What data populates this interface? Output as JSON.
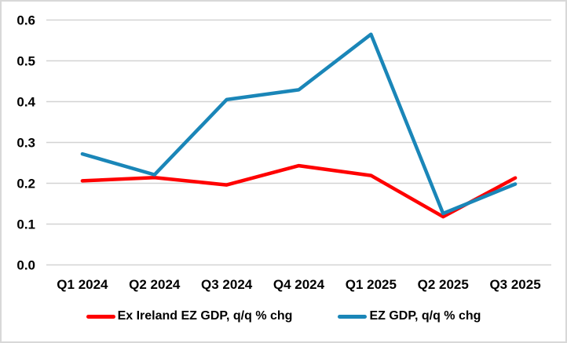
{
  "chart_data": {
    "type": "line",
    "title": "",
    "categories": [
      "Q1 2024",
      "Q2 2024",
      "Q3 2024",
      "Q4 2024",
      "Q1 2025",
      "Q2 2025",
      "Q3 2025"
    ],
    "series": [
      {
        "name": "Ex Ireland EZ GDP, q/q % chg",
        "color": "#ff0000",
        "values": [
          0.206,
          0.214,
          0.196,
          0.243,
          0.219,
          0.118,
          0.213
        ]
      },
      {
        "name": "EZ GDP, q/q % chg",
        "color": "#1a86b8",
        "values": [
          0.272,
          0.221,
          0.405,
          0.429,
          0.565,
          0.126,
          0.198
        ]
      }
    ],
    "xlabel": "",
    "ylabel": "",
    "ylim": [
      0.0,
      0.6
    ],
    "y_tick_step": 0.1,
    "y_tick_labels": [
      "0.0",
      "0.1",
      "0.2",
      "0.3",
      "0.4",
      "0.5",
      "0.6"
    ],
    "grid": true,
    "legend_position": "bottom"
  },
  "style": {
    "gridline_color": "#d3d3d3",
    "border_color": "#d8d8d8",
    "background_color": "#ffffff",
    "text_color": "#000000",
    "line_width": 4.5
  }
}
